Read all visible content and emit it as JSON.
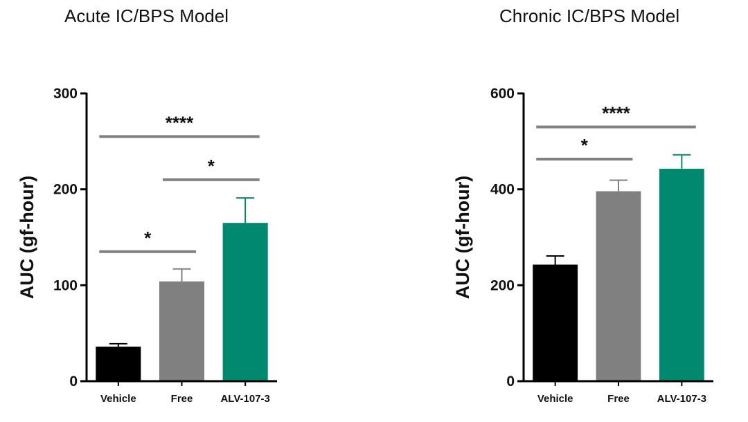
{
  "chart_data": [
    {
      "type": "bar",
      "title": "Acute IC/BPS Model",
      "ylabel": "AUC (gf-hour)",
      "xlabel": "",
      "categories": [
        "Vehicle",
        "Free",
        "ALV-107-3"
      ],
      "values": [
        36,
        104,
        165
      ],
      "errors": [
        3,
        13,
        26
      ],
      "colors": [
        "#000000",
        "#808080",
        "#00896f"
      ],
      "ylim": [
        0,
        300
      ],
      "yticks": [
        0,
        100,
        200,
        300
      ],
      "significance": [
        {
          "from": 0,
          "to": 1,
          "label": "*",
          "y": 135
        },
        {
          "from": 1,
          "to": 2,
          "label": "*",
          "y": 210
        },
        {
          "from": 0,
          "to": 2,
          "label": "****",
          "y": 255
        }
      ]
    },
    {
      "type": "bar",
      "title": "Chronic IC/BPS Model",
      "ylabel": "AUC (gf-hour)",
      "xlabel": "",
      "categories": [
        "Vehicle",
        "Free",
        "ALV-107-3"
      ],
      "values": [
        243,
        396,
        443
      ],
      "errors": [
        18,
        23,
        29
      ],
      "colors": [
        "#000000",
        "#808080",
        "#00896f"
      ],
      "ylim": [
        0,
        600
      ],
      "yticks": [
        0,
        200,
        400,
        600
      ],
      "significance": [
        {
          "from": 0,
          "to": 1,
          "label": "*",
          "y": 463
        },
        {
          "from": 0,
          "to": 2,
          "label": "****",
          "y": 530
        }
      ]
    }
  ]
}
